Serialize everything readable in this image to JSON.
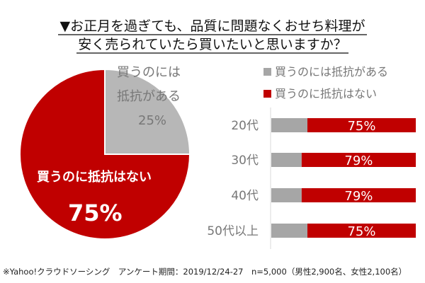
{
  "chart_data": [
    {
      "type": "pie",
      "title_line1": "▼お正月を過ぎても、品質に問題なくおせち料理が",
      "title_line2": "安く売られていたら買いたいと思いますか？",
      "slices": [
        {
          "name": "買うのには抵抗がある",
          "label_line1": "買うのには",
          "label_line2": "抵抗がある",
          "value": 25,
          "label": "25%"
        },
        {
          "name": "買うのに抵抗はない",
          "value": 75,
          "label": "75%"
        }
      ]
    },
    {
      "type": "bar",
      "stacked": true,
      "orientation": "horizontal",
      "categories": [
        "20代",
        "30代",
        "40代",
        "50代以上"
      ],
      "series": [
        {
          "name": "買うのには抵抗がある",
          "values": [
            25,
            21,
            21,
            25
          ]
        },
        {
          "name": "買うのに抵抗はない",
          "values": [
            75,
            79,
            79,
            75
          ],
          "labels": [
            "75%",
            "79%",
            "79%",
            "75%"
          ]
        }
      ],
      "legend": "top-right",
      "xlim": [
        0,
        100
      ]
    }
  ],
  "colors": {
    "gray": "#b7b7b7",
    "bar_gray": "#a6a6a6",
    "red": "#c00000"
  },
  "footnote": "※Yahoo!クラウドソーシング　アンケート期間：2019/12/24-27　n=5,000（男性2,900名、女性2,100名）"
}
